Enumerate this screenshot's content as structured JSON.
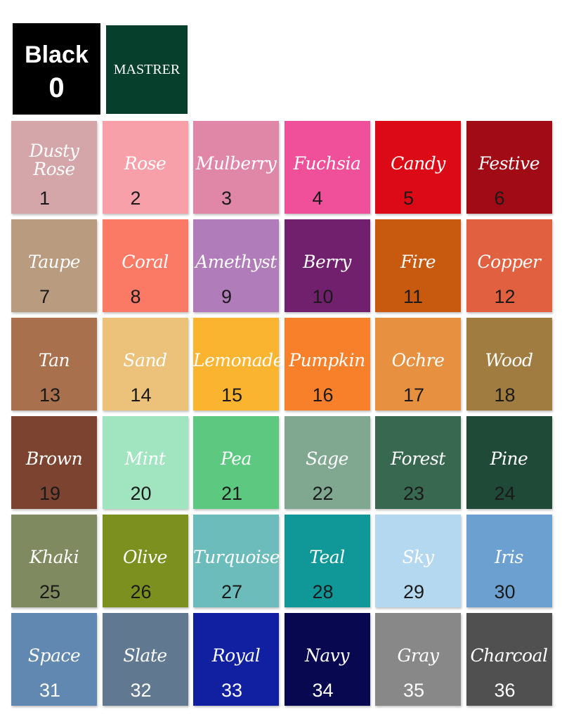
{
  "header": {
    "black_label": "Black",
    "black_number": "0",
    "brand": "MASTRER",
    "black_color": "#000000",
    "brand_color": "#06402c"
  },
  "swatches": [
    {
      "name": "Dusty Rose",
      "number": "1",
      "color": "#d4a6aa"
    },
    {
      "name": "Rose",
      "number": "2",
      "color": "#f8a0aa"
    },
    {
      "name": "Mulberry",
      "number": "3",
      "color": "#e086a6"
    },
    {
      "name": "Fuchsia",
      "number": "4",
      "color": "#f04f9a"
    },
    {
      "name": "Candy",
      "number": "5",
      "color": "#dc0a16"
    },
    {
      "name": "Festive",
      "number": "6",
      "color": "#a10b16"
    },
    {
      "name": "Taupe",
      "number": "7",
      "color": "#b99b80"
    },
    {
      "name": "Coral",
      "number": "8",
      "color": "#fb7a66"
    },
    {
      "name": "Amethyst",
      "number": "9",
      "color": "#b07cba"
    },
    {
      "name": "Berry",
      "number": "10",
      "color": "#70206c"
    },
    {
      "name": "Fire",
      "number": "11",
      "color": "#c85a10"
    },
    {
      "name": "Copper",
      "number": "12",
      "color": "#e06040"
    },
    {
      "name": "Tan",
      "number": "13",
      "color": "#a8704c"
    },
    {
      "name": "Sand",
      "number": "14",
      "color": "#ecc27a"
    },
    {
      "name": "Lemonade",
      "number": "15",
      "color": "#fbb430"
    },
    {
      "name": "Pumpkin",
      "number": "16",
      "color": "#f8802a"
    },
    {
      "name": "Ochre",
      "number": "17",
      "color": "#e69040"
    },
    {
      "name": "Wood",
      "number": "18",
      "color": "#a07c40"
    },
    {
      "name": "Brown",
      "number": "19",
      "color": "#7c4430"
    },
    {
      "name": "Mint",
      "number": "20",
      "color": "#a0e4c0"
    },
    {
      "name": "Pea",
      "number": "21",
      "color": "#5cc880"
    },
    {
      "name": "Sage",
      "number": "22",
      "color": "#80a890"
    },
    {
      "name": "Forest",
      "number": "23",
      "color": "#386850"
    },
    {
      "name": "Pine",
      "number": "24",
      "color": "#204a38"
    },
    {
      "name": "Khaki",
      "number": "25",
      "color": "#808a60"
    },
    {
      "name": "Olive",
      "number": "26",
      "color": "#7c9020"
    },
    {
      "name": "Turquoise",
      "number": "27",
      "color": "#6cbcbc"
    },
    {
      "name": "Teal",
      "number": "28",
      "color": "#109898"
    },
    {
      "name": "Sky",
      "number": "29",
      "color": "#b4d8f0"
    },
    {
      "name": "Iris",
      "number": "30",
      "color": "#6ca0d0"
    },
    {
      "name": "Space",
      "number": "31",
      "color": "#6088b0"
    },
    {
      "name": "Slate",
      "number": "32",
      "color": "#607890"
    },
    {
      "name": "Royal",
      "number": "33",
      "color": "#1020a0"
    },
    {
      "name": "Navy",
      "number": "34",
      "color": "#080850"
    },
    {
      "name": "Gray",
      "number": "35",
      "color": "#888888"
    },
    {
      "name": "Charcoal",
      "number": "36",
      "color": "#505050"
    }
  ]
}
